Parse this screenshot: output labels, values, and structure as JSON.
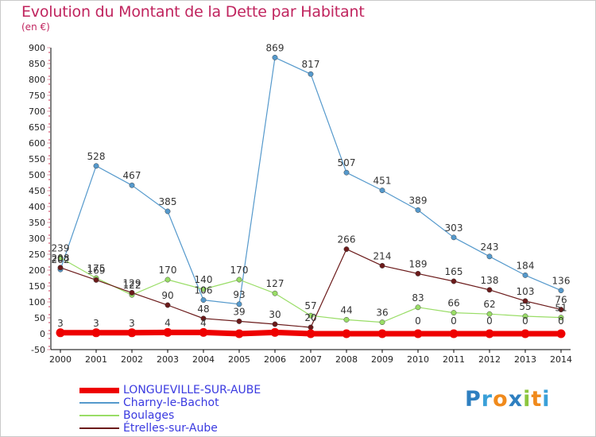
{
  "title": "Evolution du Montant de la Dette par Habitant",
  "subtitle": "(en €)",
  "logo": {
    "text": "Proxiti",
    "letters": [
      {
        "ch": "P",
        "color": "#2e7fc0"
      },
      {
        "ch": "r",
        "color": "#3aa0d8"
      },
      {
        "ch": "o",
        "color": "#f08a1c"
      },
      {
        "ch": "x",
        "color": "#2e7fc0"
      },
      {
        "ch": "i",
        "color": "#8cc63f"
      },
      {
        "ch": "t",
        "color": "#f08a1c"
      },
      {
        "ch": "i",
        "color": "#3aa0d8"
      }
    ]
  },
  "chart_data": {
    "type": "line",
    "x": [
      "2000",
      "2001",
      "2002",
      "2003",
      "2004",
      "2005",
      "2006",
      "2007",
      "2008",
      "2009",
      "2010",
      "2011",
      "2012",
      "2013",
      "2014"
    ],
    "ylim": [
      -50,
      900
    ],
    "yticks": [
      -50,
      0,
      50,
      100,
      150,
      200,
      250,
      300,
      350,
      400,
      450,
      500,
      550,
      600,
      650,
      700,
      750,
      800,
      850,
      900
    ],
    "grid": false,
    "legend_position": "bottom-left",
    "series": [
      {
        "name": "LONGUEVILLE-SUR-AUBE",
        "color": "#ee0000",
        "values": [
          3,
          3,
          3,
          4,
          4,
          0,
          4,
          0,
          0,
          0,
          0,
          0,
          0,
          0,
          0
        ],
        "labels": [
          "3",
          "3",
          "3",
          "4",
          "4",
          "",
          "",
          "",
          "",
          "",
          "",
          "",
          "",
          "",
          ""
        ]
      },
      {
        "name": "Charny-le-Bachot",
        "color": "#5599cc",
        "values": [
          202,
          528,
          467,
          385,
          106,
          93,
          869,
          817,
          507,
          451,
          389,
          303,
          243,
          184,
          136
        ],
        "labels": [
          "202",
          "528",
          "467",
          "385",
          "106",
          "93",
          "869",
          "817",
          "507",
          "451",
          "389",
          "303",
          "243",
          "184",
          "136"
        ]
      },
      {
        "name": "Boulages",
        "color": "#99dd66",
        "values": [
          239,
          175,
          122,
          170,
          140,
          170,
          127,
          57,
          44,
          36,
          83,
          66,
          62,
          55,
          51
        ],
        "labels": [
          "239",
          "175",
          "122",
          "170",
          "140",
          "170",
          "127",
          "57",
          "44",
          "36",
          "83",
          "66",
          "62",
          "55",
          "51"
        ]
      },
      {
        "name": "Étrelles-sur-Aube",
        "color": "#6b1a1a",
        "values": [
          208,
          169,
          129,
          90,
          48,
          39,
          30,
          20,
          266,
          214,
          189,
          165,
          138,
          103,
          76
        ],
        "labels": [
          "208",
          "169",
          "129",
          "90",
          "48",
          "39",
          "30",
          "20",
          "266",
          "214",
          "189",
          "165",
          "138",
          "103",
          "76"
        ]
      }
    ],
    "extra_labels": [
      "0",
      "0",
      "0",
      "0",
      "0",
      "0",
      "0"
    ]
  }
}
